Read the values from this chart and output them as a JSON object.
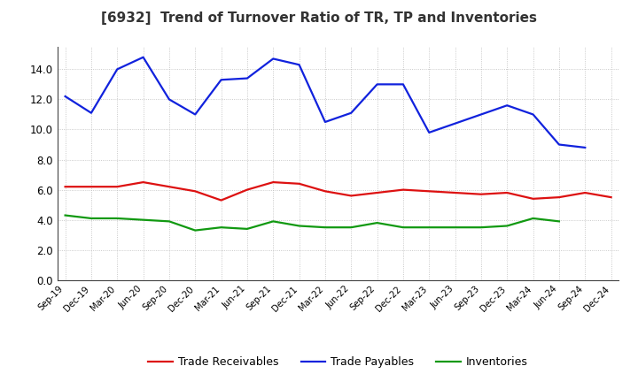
{
  "title": "[6932]  Trend of Turnover Ratio of TR, TP and Inventories",
  "x_labels": [
    "Sep-19",
    "Dec-19",
    "Mar-20",
    "Jun-20",
    "Sep-20",
    "Dec-20",
    "Mar-21",
    "Jun-21",
    "Sep-21",
    "Dec-21",
    "Mar-22",
    "Jun-22",
    "Sep-22",
    "Dec-22",
    "Mar-23",
    "Jun-23",
    "Sep-23",
    "Dec-23",
    "Mar-24",
    "Jun-24",
    "Sep-24",
    "Dec-24"
  ],
  "trade_receivables": [
    6.2,
    6.2,
    6.2,
    6.5,
    6.2,
    5.9,
    5.3,
    6.0,
    6.5,
    6.4,
    5.9,
    5.6,
    5.8,
    6.0,
    5.9,
    5.8,
    5.7,
    5.8,
    5.4,
    5.5,
    5.8,
    5.5
  ],
  "trade_payables": [
    12.2,
    11.1,
    14.0,
    14.8,
    12.0,
    11.0,
    13.3,
    13.4,
    14.7,
    14.3,
    10.5,
    11.1,
    13.0,
    13.0,
    9.8,
    10.4,
    11.0,
    11.6,
    11.0,
    9.0,
    8.8,
    null
  ],
  "inventories": [
    4.3,
    4.1,
    4.1,
    4.0,
    3.9,
    3.3,
    3.5,
    3.4,
    3.9,
    3.6,
    3.5,
    3.5,
    3.8,
    3.5,
    3.5,
    3.5,
    3.5,
    3.6,
    4.1,
    3.9,
    null,
    null
  ],
  "color_tr": "#dd1111",
  "color_tp": "#1122dd",
  "color_inv": "#119911",
  "ylim": [
    0.0,
    15.5
  ],
  "yticks": [
    0.0,
    2.0,
    4.0,
    6.0,
    8.0,
    10.0,
    12.0,
    14.0
  ],
  "legend_labels": [
    "Trade Receivables",
    "Trade Payables",
    "Inventories"
  ],
  "background_color": "#ffffff",
  "grid_color": "#bbbbbb"
}
